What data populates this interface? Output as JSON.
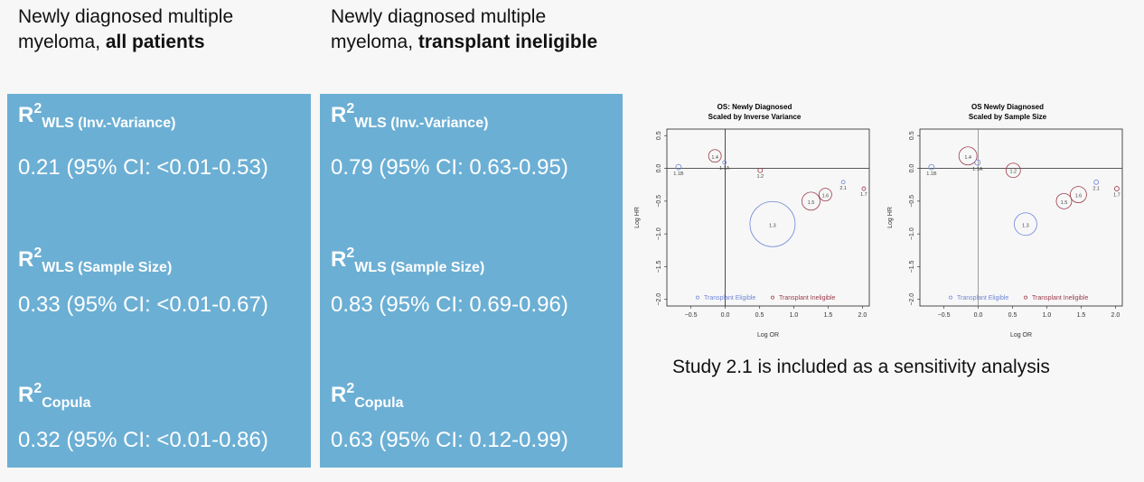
{
  "columns": [
    {
      "title_plain": "Newly diagnosed multiple myeloma, ",
      "title_bold": "all patients",
      "metrics": [
        {
          "r": "R",
          "sup": "2",
          "sub": "WLS (Inv.-Variance)",
          "value": "0.21 (95% CI: <0.01-0.53)"
        },
        {
          "r": "R",
          "sup": "2",
          "sub": "WLS (Sample Size)",
          "value": "0.33 (95% CI: <0.01-0.67)"
        },
        {
          "r": "R",
          "sup": "2",
          "sub": "Copula",
          "value": "0.32 (95% CI: <0.01-0.86)"
        }
      ]
    },
    {
      "title_plain": "Newly diagnosed multiple myeloma, ",
      "title_bold": "transplant ineligible",
      "metrics": [
        {
          "r": "R",
          "sup": "2",
          "sub": "WLS (Inv.-Variance)",
          "value": "0.79 (95% CI: 0.63-0.95)"
        },
        {
          "r": "R",
          "sup": "2",
          "sub": "WLS (Sample Size)",
          "value": "0.83 (95% CI: 0.69-0.96)"
        },
        {
          "r": "R",
          "sup": "2",
          "sub": "Copula",
          "value": "0.63 (95% CI: 0.12-0.99)"
        }
      ]
    }
  ],
  "caption": "Study 2.1 is included as a sensitivity analysis",
  "colors": {
    "eligible": "#6f86d6",
    "ineligible": "#9b3a4a",
    "box": "#6cafd4"
  },
  "chart_data": [
    {
      "type": "scatter",
      "title": "OS: Newly Diagnosed",
      "subtitle": "Scaled by Inverse Variance",
      "xlabel": "Log OR",
      "ylabel": "Log HR",
      "xlim": [
        -0.85,
        2.1
      ],
      "ylim": [
        -2.1,
        0.6
      ],
      "xticks": [
        "-0.5",
        "0.0",
        "0.5",
        "1.0",
        "1.5",
        "2.0"
      ],
      "yticks": [
        "0.5",
        "0.0",
        "-0.5",
        "-1.0",
        "-1.5",
        "-2.0"
      ],
      "legend": [
        "Transplant Eligible",
        "Transplant Ineligible"
      ],
      "legend_position": "bottom",
      "points": [
        {
          "label": "1.1B",
          "x": -0.68,
          "y": 0.02,
          "group": "eligible",
          "size": 3
        },
        {
          "label": "1.4",
          "x": -0.15,
          "y": 0.19,
          "group": "ineligible",
          "size": 7
        },
        {
          "label": "1.1A",
          "x": -0.01,
          "y": 0.09,
          "group": "eligible",
          "size": 2
        },
        {
          "label": "1.2",
          "x": 0.51,
          "y": -0.03,
          "group": "ineligible",
          "size": 2.5
        },
        {
          "label": "1.3",
          "x": 0.69,
          "y": -0.85,
          "group": "eligible",
          "size": 25
        },
        {
          "label": "1.5",
          "x": 1.25,
          "y": -0.5,
          "group": "ineligible",
          "size": 10
        },
        {
          "label": "1.6",
          "x": 1.46,
          "y": -0.4,
          "group": "ineligible",
          "size": 7
        },
        {
          "label": "2.1",
          "x": 1.72,
          "y": -0.21,
          "group": "eligible",
          "size": 2
        },
        {
          "label": "1.7",
          "x": 2.02,
          "y": -0.31,
          "group": "ineligible",
          "size": 2
        }
      ]
    },
    {
      "type": "scatter",
      "title": "OS Newly Diagnosed",
      "subtitle": "Scaled by Sample Size",
      "xlabel": "Log OR",
      "ylabel": "Log HR",
      "xlim": [
        -0.85,
        2.1
      ],
      "ylim": [
        -2.1,
        0.6
      ],
      "xticks": [
        "-0.5",
        "0.0",
        "0.5",
        "1.0",
        "1.5",
        "2.0"
      ],
      "yticks": [
        "0.5",
        "0.0",
        "-0.5",
        "-1.0",
        "-1.5",
        "-2.0"
      ],
      "legend": [
        "Transplant Eligible",
        "Transplant Ineligible"
      ],
      "legend_position": "bottom",
      "points": [
        {
          "label": "1.1B",
          "x": -0.68,
          "y": 0.02,
          "group": "eligible",
          "size": 3
        },
        {
          "label": "1.4",
          "x": -0.15,
          "y": 0.19,
          "group": "ineligible",
          "size": 10
        },
        {
          "label": "1.1A",
          "x": -0.01,
          "y": 0.09,
          "group": "eligible",
          "size": 3
        },
        {
          "label": "1.2",
          "x": 0.51,
          "y": -0.03,
          "group": "ineligible",
          "size": 8
        },
        {
          "label": "1.3",
          "x": 0.69,
          "y": -0.85,
          "group": "eligible",
          "size": 12.5
        },
        {
          "label": "1.5",
          "x": 1.25,
          "y": -0.5,
          "group": "ineligible",
          "size": 8.5
        },
        {
          "label": "1.6",
          "x": 1.46,
          "y": -0.4,
          "group": "ineligible",
          "size": 9
        },
        {
          "label": "2.1",
          "x": 1.72,
          "y": -0.21,
          "group": "eligible",
          "size": 2.5
        },
        {
          "label": "1.7",
          "x": 2.02,
          "y": -0.31,
          "group": "ineligible",
          "size": 2.5
        }
      ]
    }
  ]
}
